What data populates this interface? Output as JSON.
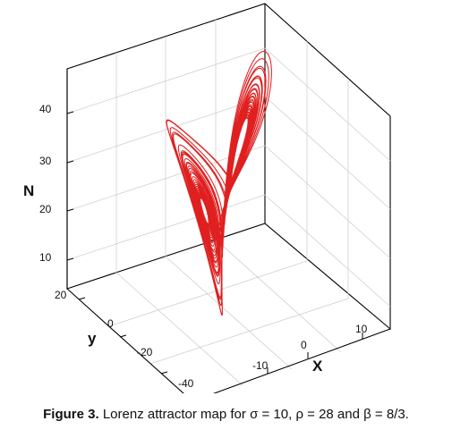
{
  "chart_data": {
    "type": "line",
    "subtype": "3d-trajectory",
    "system": {
      "sigma": 10,
      "rho": 28,
      "beta": 2.6667
    },
    "axes": {
      "x": {
        "label": "X",
        "ticks": [
          "-10",
          "0",
          "10"
        ]
      },
      "y": {
        "label": "y",
        "ticks": [
          "-40",
          "-20",
          "0",
          "20"
        ]
      },
      "z": {
        "label": "N",
        "ticks": [
          "10",
          "20",
          "30",
          "40"
        ]
      }
    },
    "grid": true,
    "line_color": "#e02020"
  },
  "caption": {
    "label": "Figure 3.",
    "text": "Lorenz attractor map for σ = 10, ρ = 28 and β = 8/3."
  }
}
